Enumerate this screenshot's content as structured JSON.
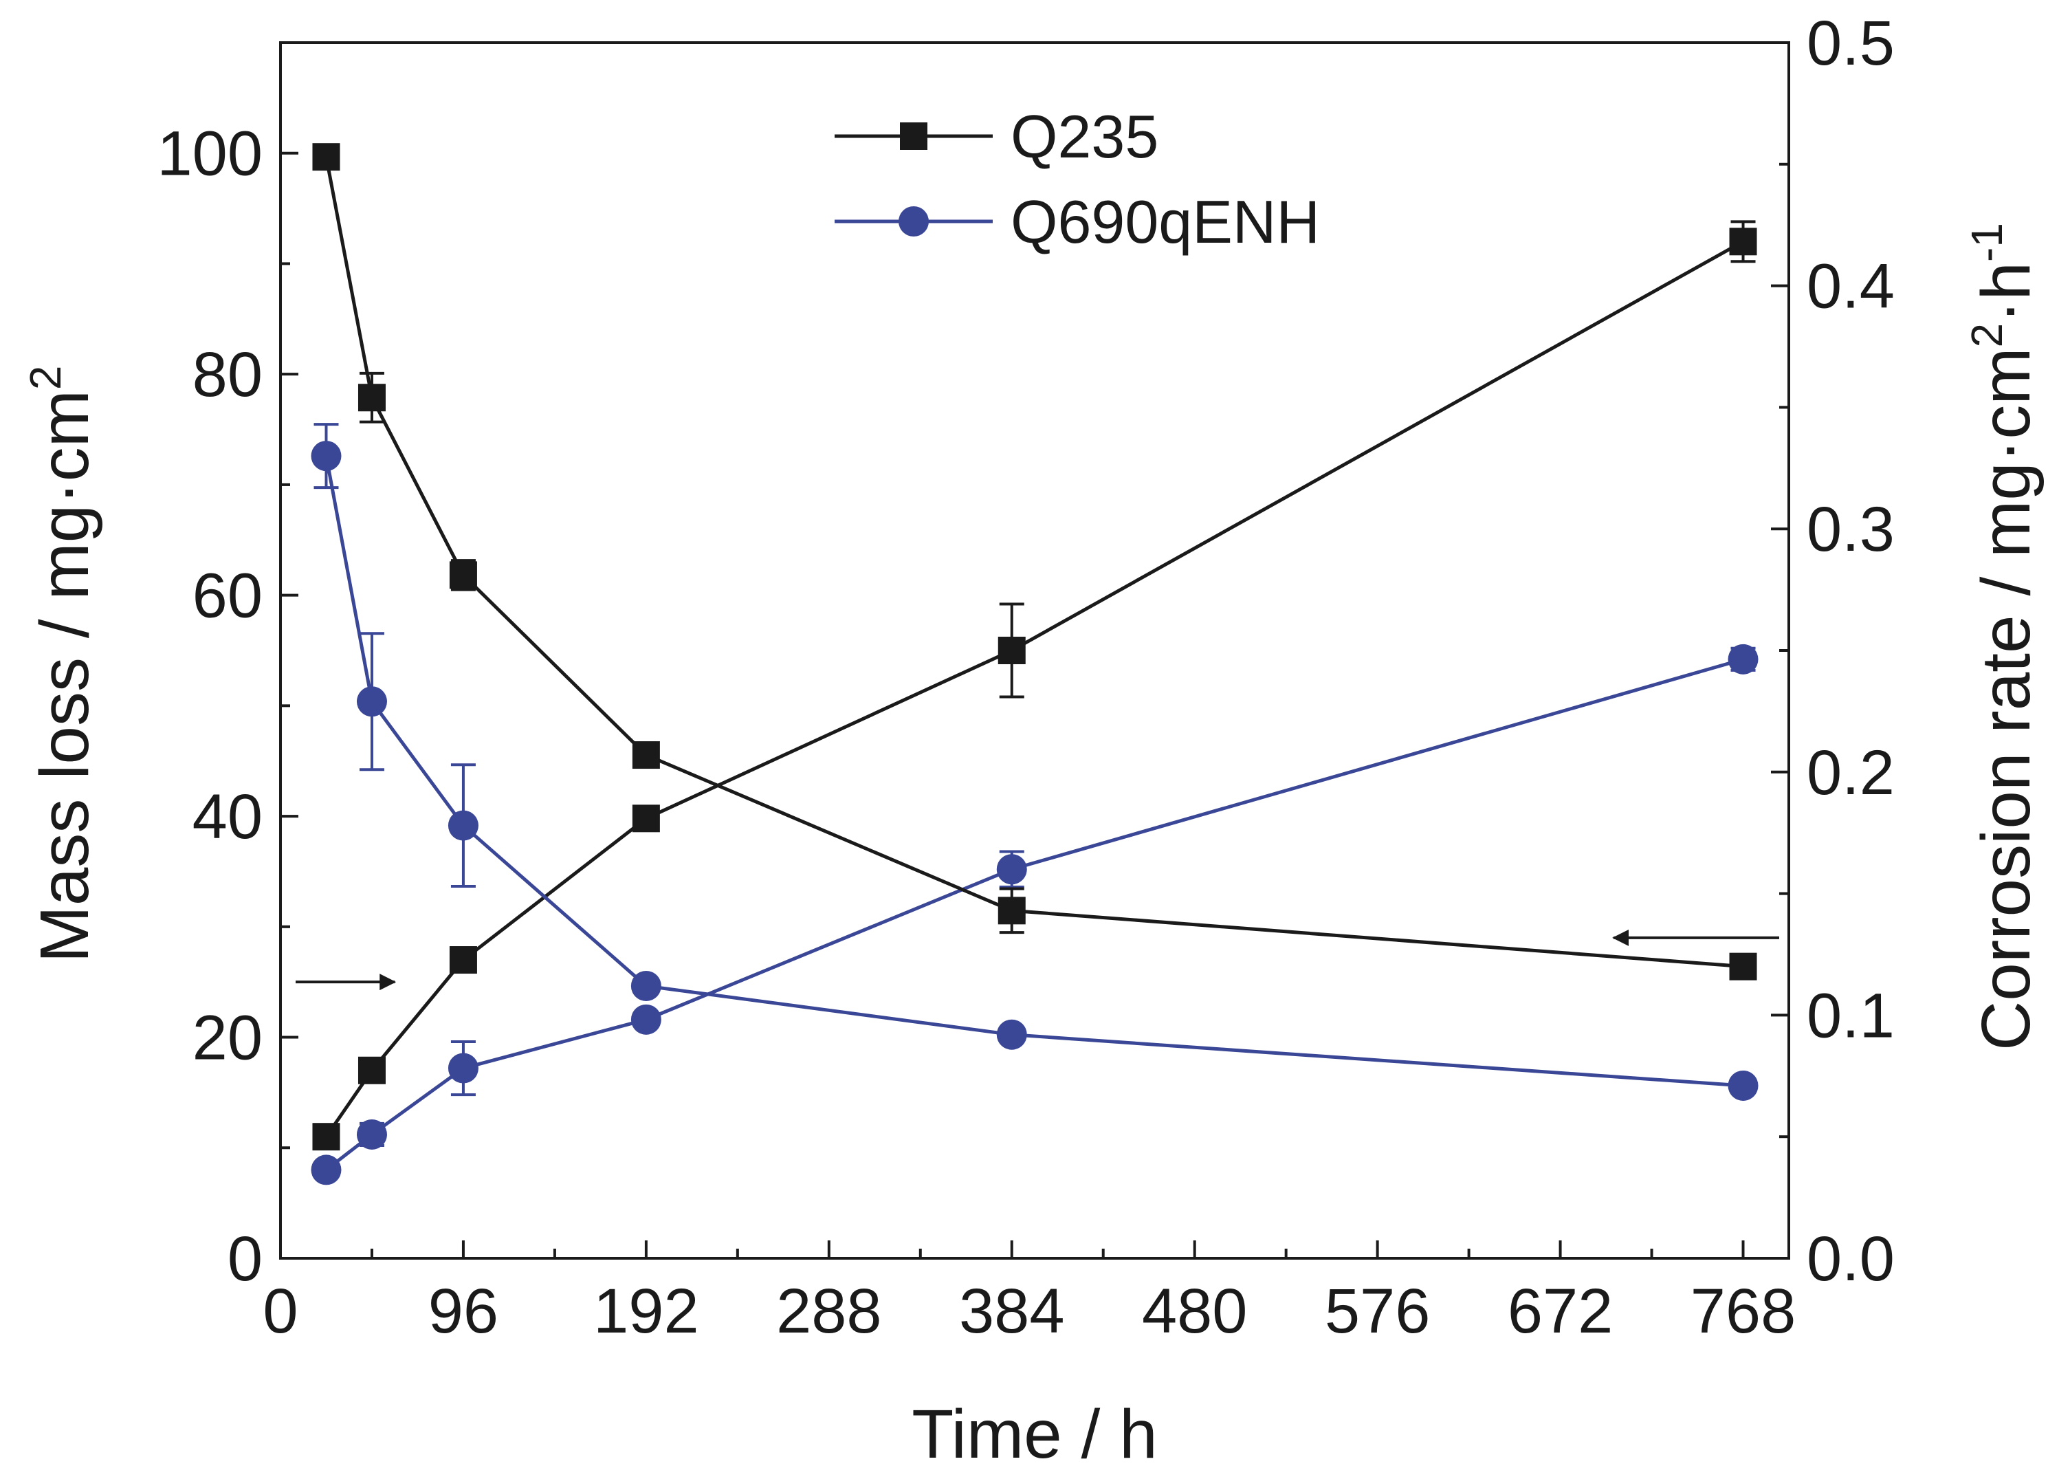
{
  "chart_data": {
    "type": "line",
    "x": [
      24,
      48,
      96,
      192,
      384,
      768
    ],
    "xlabel": "Time / h",
    "xlim": [
      0,
      792
    ],
    "xticks": [
      0,
      96,
      192,
      288,
      384,
      480,
      576,
      672,
      768
    ],
    "xtick_labels": [
      "0",
      "96",
      "192",
      "288",
      "384",
      "480",
      "576",
      "672",
      "768"
    ],
    "ylabel_left": "Mass loss / mg·cm",
    "ylabel_left_sup": "2",
    "ylim_left": [
      0,
      110
    ],
    "yticks_left": [
      0,
      20,
      40,
      60,
      80,
      100
    ],
    "ytick_labels_left": [
      "0",
      "20",
      "40",
      "60",
      "80",
      "100"
    ],
    "ylabel_right": "Corrosion rate / mg·cm",
    "ylabel_right_sup1": "2",
    "ylabel_right_mid": "·h",
    "ylabel_right_sup2": "-1",
    "ylim_right": [
      0.0,
      0.5
    ],
    "yticks_right": [
      0.0,
      0.1,
      0.2,
      0.3,
      0.4,
      0.5
    ],
    "ytick_labels_right": [
      "0.0",
      "0.1",
      "0.2",
      "0.3",
      "0.4",
      "0.5"
    ],
    "legend_position": "top-center",
    "series": [
      {
        "name": "Q235 mass loss",
        "legend": "Q235",
        "axis": "left",
        "marker": "square",
        "color": "#1a1a1a",
        "values": [
          11,
          17,
          27,
          39.8,
          55,
          92
        ],
        "errors": [
          0,
          0,
          0,
          0,
          4.2,
          1.8
        ]
      },
      {
        "name": "Q690qENH mass loss",
        "legend": "Q690qENH",
        "axis": "left",
        "marker": "circle",
        "color": "#3a4696",
        "values": [
          8,
          11.2,
          17.2,
          21.6,
          35.2,
          54.2
        ],
        "errors": [
          0,
          1.0,
          2.4,
          0,
          1.6,
          1.0
        ]
      },
      {
        "name": "Q235 corrosion rate",
        "axis": "right",
        "marker": "square",
        "color": "#1a1a1a",
        "values": [
          0.453,
          0.354,
          0.281,
          0.207,
          0.143,
          0.12
        ],
        "errors": [
          0,
          0.01,
          0.006,
          0,
          0.009,
          0
        ]
      },
      {
        "name": "Q690qENH corrosion rate",
        "axis": "right",
        "marker": "circle",
        "color": "#3a4696",
        "values": [
          0.33,
          0.229,
          0.178,
          0.112,
          0.092,
          0.071
        ],
        "errors": [
          0.013,
          0.028,
          0.025,
          0,
          0.003,
          0
        ]
      }
    ],
    "annotations": [
      {
        "type": "arrow",
        "points_to": "left axis",
        "near_x": 24,
        "value_left": 25
      },
      {
        "type": "arrow",
        "points_to": "right axis",
        "near_x": 768,
        "value_left": 29
      }
    ]
  }
}
